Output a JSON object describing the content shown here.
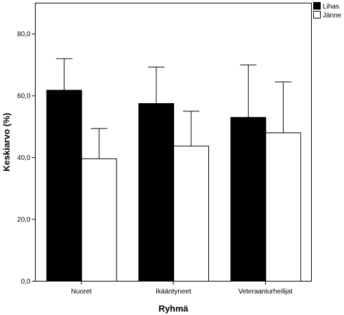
{
  "chart_data": {
    "type": "bar",
    "xlabel": "Ryhmä",
    "ylabel": "Keskiarvo (%)",
    "categories": [
      "Nuoret",
      "Ikääntyneet",
      "Veteraaniurheilijat"
    ],
    "series": [
      {
        "name": "Lihas",
        "color": "#000000",
        "values": [
          61.8,
          57.5,
          53.0
        ],
        "error_upper": [
          72.0,
          69.3,
          70.0
        ]
      },
      {
        "name": "Jänne",
        "color": "#ffffff",
        "values": [
          39.6,
          43.7,
          48.0
        ],
        "error_upper": [
          49.4,
          55.0,
          64.5
        ]
      }
    ],
    "ylim": [
      0,
      90
    ],
    "yticks": [
      0,
      20,
      40,
      60,
      80
    ],
    "ytick_labels": [
      "0,0",
      "20,0",
      "40,0",
      "60,0",
      "80,0"
    ],
    "grid": false,
    "legend_position": "top-right"
  }
}
